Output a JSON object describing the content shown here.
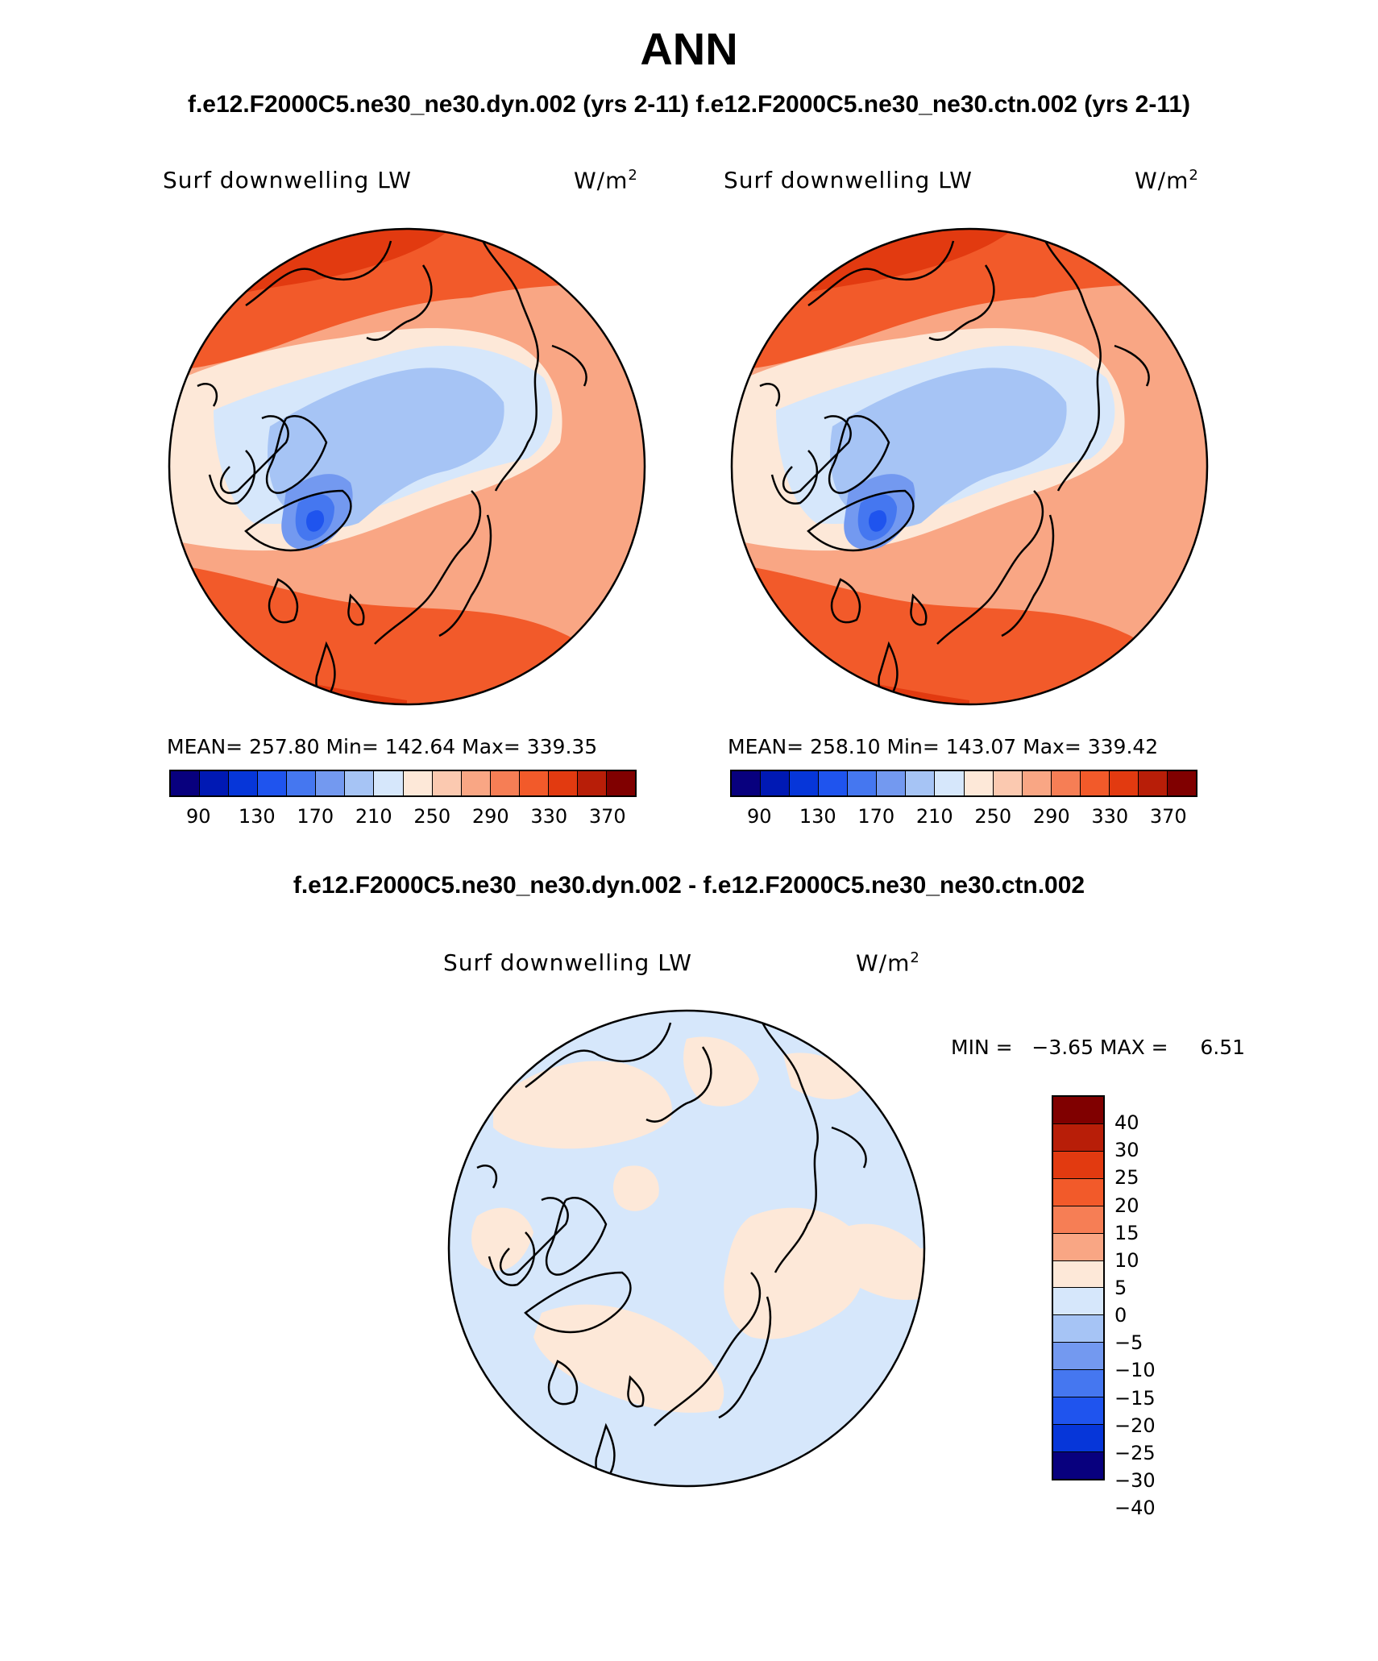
{
  "title": "ANN",
  "subtitle_top": "f.e12.F2000C5.ne30_ne30.dyn.002 (yrs 2-11)  f.e12.F2000C5.ne30_ne30.ctn.002 (yrs 2-11)",
  "subtitle_diff": "f.e12.F2000C5.ne30_ne30.dyn.002 - f.e12.F2000C5.ne30_ne30.ctn.002",
  "panels": [
    {
      "variable": "Surf downwelling LW",
      "units": "W/m",
      "units_exp": "2",
      "stats": "MEAN= 257.80   Min= 142.64   Max= 339.35"
    },
    {
      "variable": "Surf downwelling LW",
      "units": "W/m",
      "units_exp": "2",
      "stats": "MEAN= 258.10   Min= 143.07   Max= 339.42"
    }
  ],
  "diff_panel": {
    "variable": "Surf downwelling LW",
    "units": "W/m",
    "units_exp": "2",
    "minmax": "MIN =   −3.65 MAX =     6.51"
  },
  "abs_colorbar": {
    "colors": [
      "#08007e",
      "#0019b4",
      "#0636d9",
      "#1f54ee",
      "#4577f0",
      "#7399f0",
      "#a6c4f5",
      "#d6e7fb",
      "#fde8d8",
      "#fbc9b0",
      "#f9a684",
      "#f67e55",
      "#f25a2a",
      "#e23a10",
      "#b81e08",
      "#800000"
    ],
    "labels": [
      "90",
      "130",
      "170",
      "210",
      "250",
      "290",
      "330",
      "370"
    ]
  },
  "diff_colorbar": {
    "colors": [
      "#800000",
      "#b81e08",
      "#e23a10",
      "#f25a2a",
      "#f67e55",
      "#f9a684",
      "#fde8d8",
      "#d6e7fb",
      "#a6c4f5",
      "#7399f0",
      "#4577f0",
      "#1f54ee",
      "#0636d9",
      "#08007e"
    ],
    "labels": [
      "40",
      "30",
      "25",
      "20",
      "15",
      "10",
      "5",
      "0",
      "−5",
      "−10",
      "−15",
      "−20",
      "−25",
      "−30",
      "−40"
    ]
  }
}
